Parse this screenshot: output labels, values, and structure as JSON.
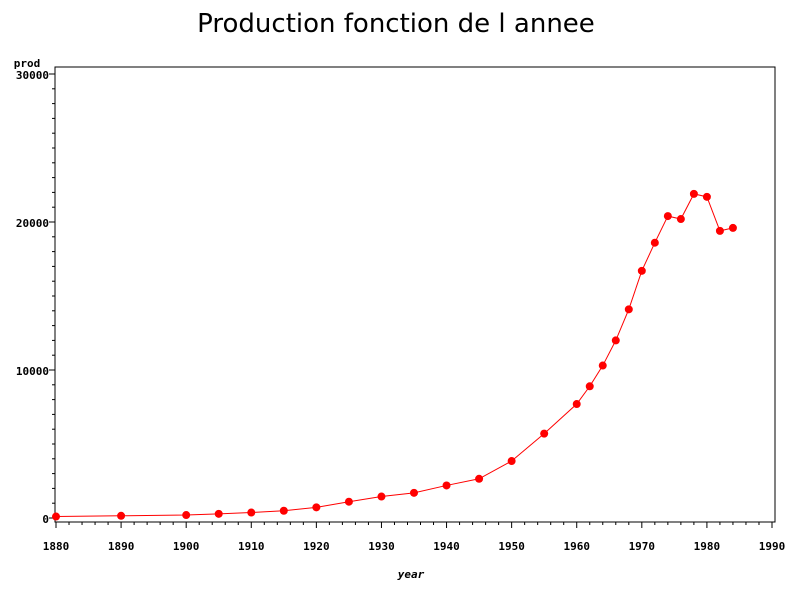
{
  "chart_data": {
    "type": "line",
    "title": "Production fonction de l annee",
    "xlabel": "year",
    "ylabel": "prod",
    "xlim": [
      1880,
      1990
    ],
    "ylim": [
      0,
      30000
    ],
    "x_ticks": [
      1880,
      1890,
      1900,
      1910,
      1920,
      1930,
      1940,
      1950,
      1960,
      1970,
      1980,
      1990
    ],
    "y_ticks": [
      0,
      10000,
      20000,
      30000
    ],
    "x": [
      1880,
      1890,
      1900,
      1905,
      1910,
      1915,
      1920,
      1925,
      1930,
      1935,
      1940,
      1945,
      1950,
      1955,
      1960,
      1962,
      1964,
      1966,
      1968,
      1970,
      1972,
      1974,
      1976,
      1978,
      1980,
      1982,
      1984
    ],
    "series": [
      {
        "values": [
          100,
          150,
          200,
          280,
          370,
          490,
          720,
          1100,
          1450,
          1700,
          2200,
          2650,
          3850,
          5700,
          7700,
          8900,
          10300,
          12000,
          14100,
          16700,
          18600,
          20400,
          20200,
          21900,
          21700,
          19400,
          19600
        ],
        "color": "#ff0000"
      }
    ],
    "grid": false,
    "legend": "none"
  }
}
